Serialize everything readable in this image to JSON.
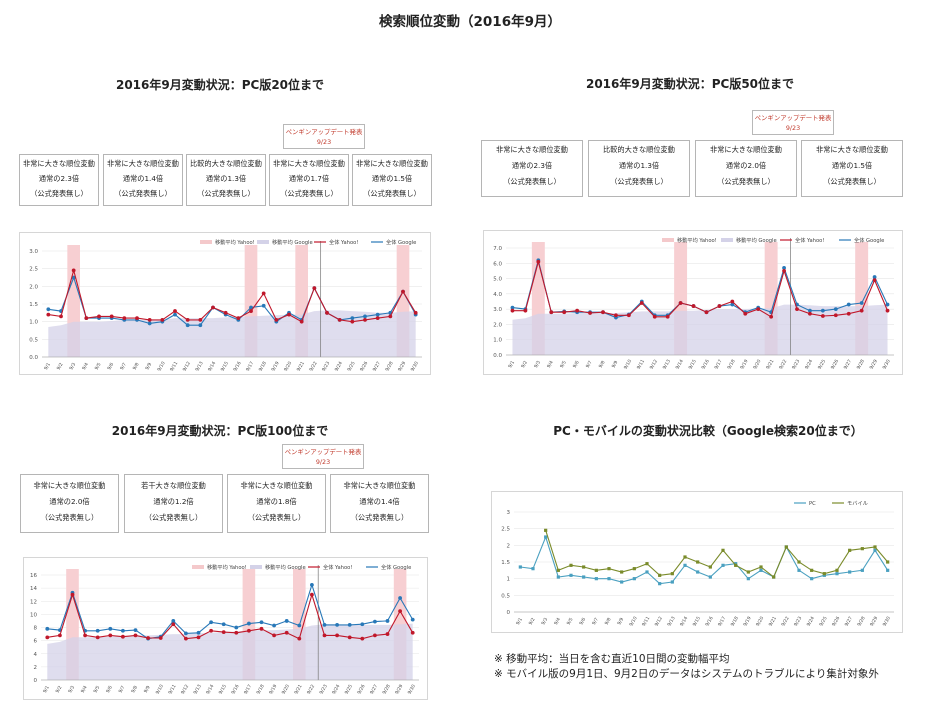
{
  "page_title": "検索順位変動（2016年9月）",
  "notes": [
    "※ 移動平均：当日を含む直近10日間の変動幅平均",
    "※ モバイル版の9月1日、9月2日のデータはシステムのトラブルにより集計対象外"
  ],
  "colors": {
    "yahoo": "#c0182b",
    "google": "#2878b8",
    "avg_yahoo": "#f4c9cb",
    "avg_google": "#d4d2e8",
    "highlight": "#f7cfd2",
    "pc": "#4aa0c0",
    "mobile": "#7a8b2a"
  },
  "dates": [
    "9/1",
    "9/2",
    "9/3",
    "9/4",
    "9/5",
    "9/6",
    "9/7",
    "9/8",
    "9/9",
    "9/10",
    "9/11",
    "9/12",
    "9/13",
    "9/14",
    "9/15",
    "9/16",
    "9/17",
    "9/18",
    "9/19",
    "9/20",
    "9/21",
    "9/22",
    "9/23",
    "9/24",
    "9/25",
    "9/26",
    "9/27",
    "9/28",
    "9/29",
    "9/30"
  ],
  "penguin_label": {
    "line1": "ペンギンアップデート発表",
    "line2": "9/23"
  },
  "chart_data": [
    {
      "type": "line",
      "title": "2016年9月変動状況：PC版20位まで",
      "ylim": [
        0,
        3
      ],
      "yticks": [
        "0.0",
        "0.5",
        "1.0",
        "1.5",
        "2.0",
        "2.5",
        "3.0"
      ],
      "legend": [
        "移動平均 Yahoo!",
        "移動平均 Google",
        "全体 Yahoo!",
        "全体 Google"
      ],
      "series": [
        {
          "name": "全体 Yahoo!",
          "values": [
            1.2,
            1.15,
            2.45,
            1.1,
            1.15,
            1.15,
            1.1,
            1.1,
            1.05,
            1.05,
            1.3,
            1.05,
            1.05,
            1.4,
            1.25,
            1.1,
            1.3,
            1.8,
            1.05,
            1.2,
            1.0,
            1.95,
            1.25,
            1.05,
            1.0,
            1.05,
            1.1,
            1.15,
            1.85,
            1.25
          ]
        },
        {
          "name": "全体 Google",
          "values": [
            1.35,
            1.3,
            2.25,
            1.1,
            1.1,
            1.1,
            1.05,
            1.05,
            0.95,
            1.0,
            1.2,
            0.9,
            0.9,
            1.4,
            1.2,
            1.05,
            1.4,
            1.45,
            1.0,
            1.25,
            1.05,
            1.95,
            1.25,
            1.05,
            1.1,
            1.15,
            1.2,
            1.25,
            1.85,
            1.2
          ]
        },
        {
          "name": "移動平均 Google",
          "values": [
            0.85,
            0.9,
            1.0,
            1.0,
            1.0,
            1.02,
            1.05,
            1.05,
            1.05,
            1.05,
            1.1,
            1.1,
            1.1,
            1.1,
            1.12,
            1.15,
            1.15,
            1.17,
            1.18,
            1.2,
            1.2,
            1.3,
            1.32,
            1.32,
            1.3,
            1.28,
            1.25,
            1.25,
            1.28,
            1.3
          ]
        }
      ],
      "highlights": [
        3,
        17,
        21,
        29
      ],
      "event_line": 22,
      "callouts": [
        {
          "l1": "非常に大きな順位変動",
          "l2": "通常の2.3倍",
          "l3": "（公式発表無し）"
        },
        {
          "l1": "非常に大きな順位変動",
          "l2": "通常の1.4倍",
          "l3": "（公式発表無し）"
        },
        {
          "l1": "比較的大きな順位変動",
          "l2": "通常の1.3倍",
          "l3": "（公式発表無し）"
        },
        {
          "l1": "非常に大きな順位変動",
          "l2": "通常の1.7倍",
          "l3": "（公式発表無し）"
        },
        {
          "l1": "非常に大きな順位変動",
          "l2": "通常の1.5倍",
          "l3": "（公式発表無し）"
        }
      ]
    },
    {
      "type": "line",
      "title": "2016年9月変動状況：PC版50位まで",
      "ylim": [
        0,
        7
      ],
      "yticks": [
        "0.0",
        "1.0",
        "2.0",
        "3.0",
        "4.0",
        "5.0",
        "6.0",
        "7.0"
      ],
      "legend": [
        "移動平均 Yahoo!",
        "移動平均 Google",
        "全体 Yahoo!",
        "全体 Google"
      ],
      "series": [
        {
          "name": "全体 Yahoo!",
          "values": [
            2.9,
            2.9,
            6.1,
            2.8,
            2.8,
            2.9,
            2.75,
            2.8,
            2.6,
            2.6,
            3.4,
            2.5,
            2.5,
            3.4,
            3.2,
            2.8,
            3.2,
            3.5,
            2.7,
            3.0,
            2.5,
            5.5,
            3.0,
            2.7,
            2.55,
            2.6,
            2.7,
            2.9,
            4.9,
            2.9
          ]
        },
        {
          "name": "全体 Google",
          "values": [
            3.1,
            3.0,
            6.2,
            2.8,
            2.85,
            2.8,
            2.8,
            2.8,
            2.45,
            2.65,
            3.5,
            2.6,
            2.6,
            3.4,
            3.2,
            2.8,
            3.2,
            3.3,
            2.8,
            3.1,
            2.8,
            5.7,
            3.3,
            2.9,
            2.9,
            3.0,
            3.3,
            3.4,
            5.1,
            3.3
          ]
        },
        {
          "name": "移動平均 Google",
          "values": [
            2.3,
            2.4,
            2.7,
            2.7,
            2.7,
            2.75,
            2.75,
            2.75,
            2.75,
            2.8,
            2.85,
            2.85,
            2.85,
            2.9,
            2.9,
            2.95,
            3.0,
            3.0,
            3.0,
            3.05,
            3.05,
            3.3,
            3.3,
            3.25,
            3.2,
            3.2,
            3.2,
            3.2,
            3.25,
            3.3
          ]
        }
      ],
      "highlights": [
        3,
        14,
        21,
        28
      ],
      "event_line": 22,
      "callouts": [
        {
          "l1": "非常に大きな順位変動",
          "l2": "通常の2.3倍",
          "l3": "（公式発表無し）"
        },
        {
          "l1": "比較的大きな順位変動",
          "l2": "通常の1.3倍",
          "l3": "（公式発表無し）"
        },
        {
          "l1": "非常に大きな順位変動",
          "l2": "通常の2.0倍",
          "l3": "（公式発表無し）"
        },
        {
          "l1": "非常に大きな順位変動",
          "l2": "通常の1.5倍",
          "l3": "（公式発表無し）"
        }
      ]
    },
    {
      "type": "line",
      "title": "2016年9月変動状況：PC版100位まで",
      "ylim": [
        0,
        16
      ],
      "yticks": [
        "0",
        "2",
        "4",
        "6",
        "8",
        "10",
        "12",
        "14",
        "16"
      ],
      "legend": [
        "移動平均 Yahoo!",
        "移動平均 Google",
        "全体 Yahoo!",
        "全体 Google"
      ],
      "series": [
        {
          "name": "全体 Yahoo!",
          "values": [
            6.5,
            6.8,
            13.0,
            6.8,
            6.5,
            6.8,
            6.6,
            6.8,
            6.4,
            6.4,
            8.5,
            6.3,
            6.5,
            7.5,
            7.3,
            7.2,
            7.5,
            7.8,
            6.8,
            7.2,
            6.3,
            13.0,
            6.8,
            6.8,
            6.5,
            6.3,
            6.8,
            7.0,
            10.5,
            7.2
          ]
        },
        {
          "name": "全体 Google",
          "values": [
            7.8,
            7.6,
            13.3,
            7.5,
            7.5,
            7.8,
            7.5,
            7.6,
            6.3,
            6.6,
            9.0,
            7.1,
            7.2,
            8.8,
            8.5,
            8.0,
            8.6,
            8.8,
            8.3,
            9.0,
            8.3,
            14.5,
            8.4,
            8.4,
            8.4,
            8.5,
            8.9,
            9.0,
            12.5,
            9.2
          ]
        },
        {
          "name": "移動平均 Google",
          "values": [
            5.5,
            5.8,
            6.5,
            6.5,
            6.5,
            6.6,
            6.7,
            6.8,
            6.8,
            6.9,
            7.0,
            7.0,
            7.1,
            7.2,
            7.3,
            7.4,
            7.5,
            7.6,
            7.6,
            7.7,
            7.8,
            8.3,
            8.5,
            8.5,
            8.4,
            8.4,
            8.4,
            8.4,
            8.5,
            8.6
          ]
        }
      ],
      "highlights": [
        3,
        17,
        21,
        29
      ],
      "event_line": 22,
      "callouts": [
        {
          "l1": "非常に大きな順位変動",
          "l2": "通常の2.0倍",
          "l3": "（公式発表無し）"
        },
        {
          "l1": "若干大きな順位変動",
          "l2": "通常の1.2倍",
          "l3": "（公式発表無し）"
        },
        {
          "l1": "非常に大きな順位変動",
          "l2": "通常の1.8倍",
          "l3": "（公式発表無し）"
        },
        {
          "l1": "非常に大きな順位変動",
          "l2": "通常の1.4倍",
          "l3": "（公式発表無し）"
        }
      ]
    },
    {
      "type": "line",
      "title": "PC・モバイルの変動状況比較（Google検索20位まで）",
      "ylim": [
        0,
        3
      ],
      "yticks": [
        "0",
        "0.5",
        "1",
        "1.5",
        "2",
        "2.5",
        "3"
      ],
      "legend": [
        "PC",
        "モバイル"
      ],
      "series": [
        {
          "name": "PC",
          "values": [
            1.35,
            1.3,
            2.25,
            1.05,
            1.1,
            1.05,
            1.0,
            1.0,
            0.9,
            1.0,
            1.2,
            0.85,
            0.9,
            1.4,
            1.2,
            1.05,
            1.4,
            1.45,
            1.0,
            1.25,
            1.05,
            1.95,
            1.25,
            1.0,
            1.1,
            1.15,
            1.2,
            1.25,
            1.85,
            1.25
          ]
        },
        {
          "name": "モバイル",
          "values": [
            null,
            null,
            2.45,
            1.25,
            1.4,
            1.35,
            1.25,
            1.3,
            1.2,
            1.3,
            1.45,
            1.1,
            1.15,
            1.65,
            1.5,
            1.35,
            1.85,
            1.4,
            1.2,
            1.35,
            1.05,
            1.95,
            1.5,
            1.25,
            1.15,
            1.25,
            1.85,
            1.9,
            1.95,
            1.5
          ]
        }
      ]
    }
  ]
}
